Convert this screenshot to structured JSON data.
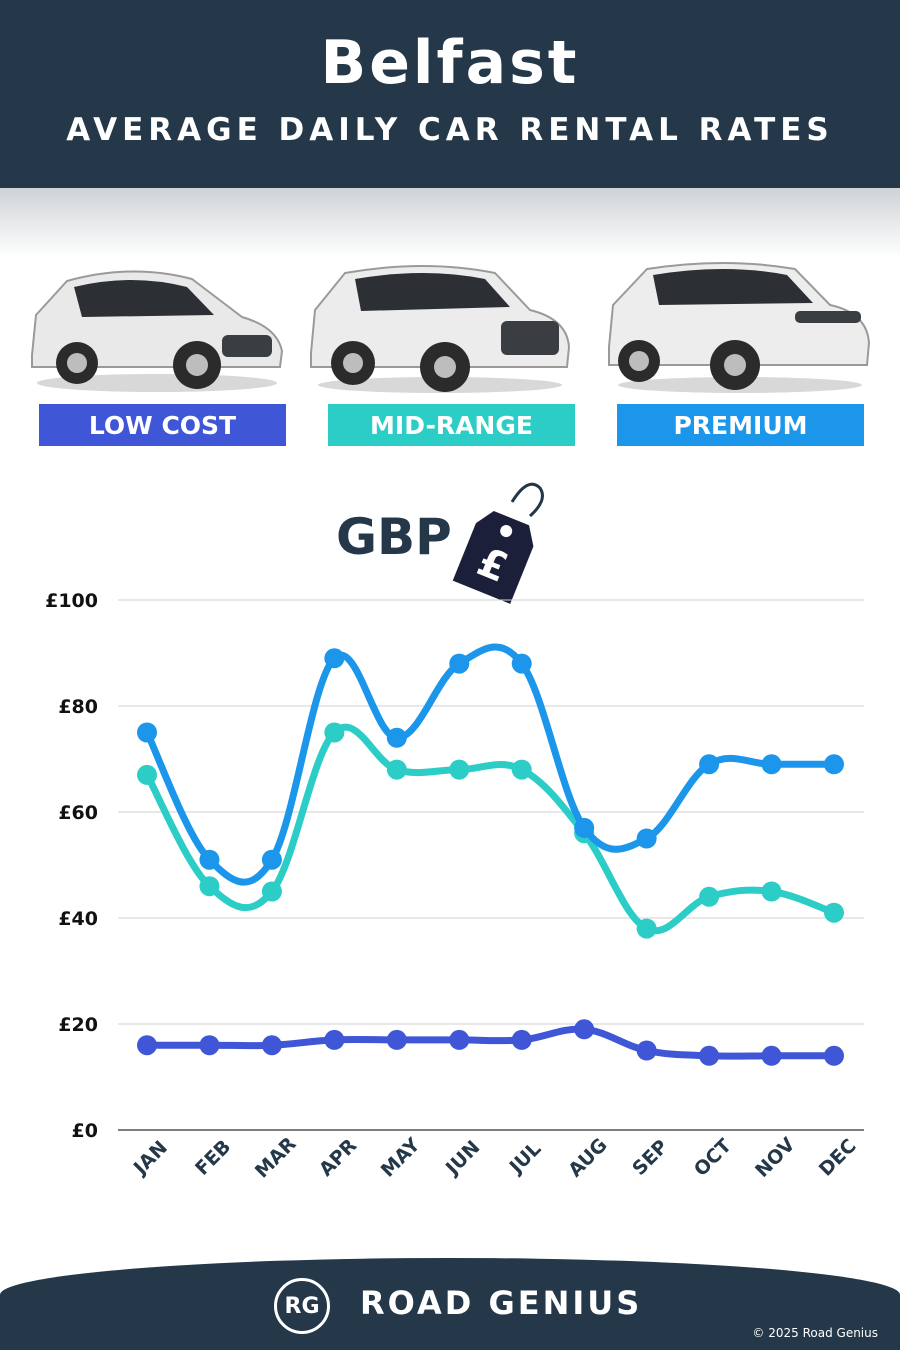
{
  "header": {
    "city": "Belfast",
    "subtitle": "AVERAGE DAILY CAR RENTAL RATES"
  },
  "categories": [
    {
      "label": "LOW COST",
      "color": "#3f56d6"
    },
    {
      "label": "MID-RANGE",
      "color": "#2ccdc6"
    },
    {
      "label": "PREMIUM",
      "color": "#1b96ea"
    }
  ],
  "currency_label": "GBP",
  "currency_symbol": "£",
  "chart_data": {
    "type": "line",
    "categories": [
      "JAN",
      "FEB",
      "MAR",
      "APR",
      "MAY",
      "JUN",
      "JUL",
      "AUG",
      "SEP",
      "OCT",
      "NOV",
      "DEC"
    ],
    "series": [
      {
        "name": "LOW COST",
        "color": "#3f56d6",
        "values": [
          16,
          16,
          16,
          17,
          17,
          17,
          17,
          19,
          15,
          14,
          14,
          14
        ]
      },
      {
        "name": "MID-RANGE",
        "color": "#2ccdc6",
        "values": [
          67,
          46,
          45,
          75,
          68,
          68,
          68,
          56,
          38,
          44,
          45,
          41
        ]
      },
      {
        "name": "PREMIUM",
        "color": "#1b96ea",
        "values": [
          75,
          51,
          51,
          89,
          74,
          88,
          88,
          57,
          55,
          69,
          69,
          69
        ]
      }
    ],
    "yticks": [
      "£0",
      "£20",
      "£40",
      "£60",
      "£80",
      "£100"
    ],
    "ylim": [
      0,
      100
    ],
    "grid": true
  },
  "footer": {
    "logo": "RG",
    "brand": "ROAD GENIUS",
    "copyright": "© 2025 Road Genius"
  }
}
